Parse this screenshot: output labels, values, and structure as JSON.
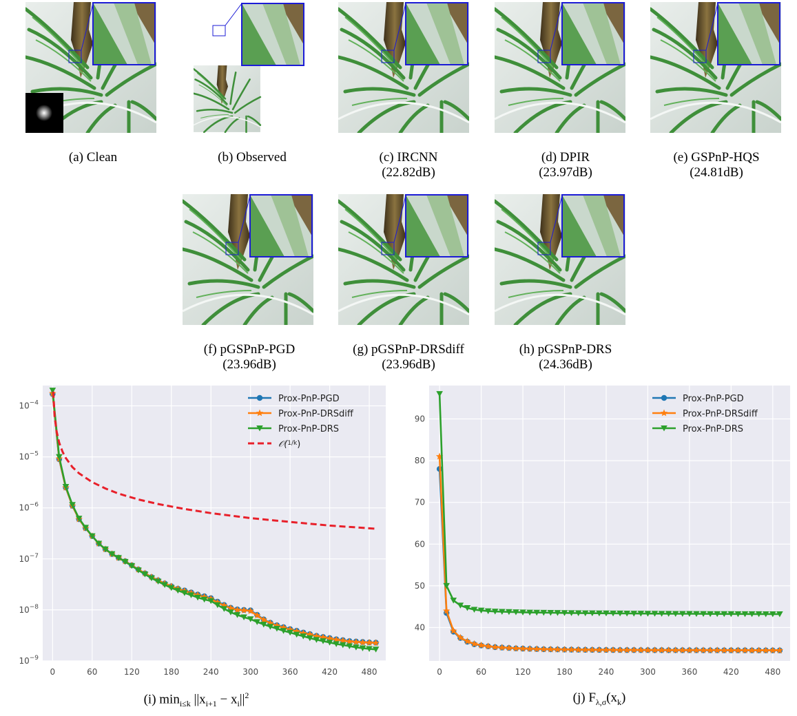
{
  "figure": {
    "panels": [
      {
        "id": "a",
        "label": "(a) Clean",
        "psnr": ""
      },
      {
        "id": "b",
        "label": "(b) Observed",
        "psnr": ""
      },
      {
        "id": "c",
        "label": "(c) IRCNN",
        "psnr": "(22.82dB)"
      },
      {
        "id": "d",
        "label": "(d) DPIR",
        "psnr": "(23.97dB)"
      },
      {
        "id": "e",
        "label": "(e) GSPnP-HQS",
        "psnr": "(24.81dB)"
      },
      {
        "id": "f",
        "label": "(f) pGSPnP-PGD",
        "psnr": "(23.96dB)"
      },
      {
        "id": "g",
        "label": "(g) pGSPnP-DRSdiff",
        "psnr": "(23.96dB)"
      },
      {
        "id": "h",
        "label": "(h) pGSPnP-DRS",
        "psnr": "(24.36dB)"
      }
    ],
    "colors": {
      "zoom_box": "#1b1bd6",
      "leaf": "#3f8f3a",
      "bg": "#dfe6e2",
      "stem": "#6b5a30"
    }
  },
  "chart_data": [
    {
      "type": "line",
      "caption": "(i) min",
      "caption_sub": "i≤k",
      "caption_rest": " ||x",
      "caption_sub2": "i+1",
      "caption_mid": " − x",
      "caption_sub3": "i",
      "caption_end": "||",
      "caption_sup": "2",
      "yscale": "log",
      "ylim": [
        1e-09,
        0.00025
      ],
      "xlim": [
        -15,
        505
      ],
      "xticks": [
        0,
        60,
        120,
        180,
        240,
        300,
        360,
        420,
        480
      ],
      "yticks": [
        {
          "v": 1e-09,
          "base": "10",
          "exp": "−9"
        },
        {
          "v": 1e-08,
          "base": "10",
          "exp": "−8"
        },
        {
          "v": 1e-07,
          "base": "10",
          "exp": "−7"
        },
        {
          "v": 1e-06,
          "base": "10",
          "exp": "−6"
        },
        {
          "v": 1e-05,
          "base": "10",
          "exp": "−5"
        },
        {
          "v": 0.0001,
          "base": "10",
          "exp": "−4"
        }
      ],
      "grid": true,
      "legend_position": "top-right",
      "series": [
        {
          "name": "Prox-PnP-PGD",
          "color": "#1f77b4",
          "marker": "circle",
          "x": [
            0,
            10,
            20,
            30,
            40,
            50,
            60,
            70,
            80,
            90,
            100,
            110,
            120,
            130,
            140,
            150,
            160,
            170,
            180,
            190,
            200,
            210,
            220,
            230,
            240,
            250,
            260,
            270,
            280,
            290,
            300,
            310,
            320,
            330,
            340,
            350,
            360,
            370,
            380,
            390,
            400,
            410,
            420,
            430,
            440,
            450,
            460,
            470,
            480,
            490
          ],
          "y": [
            0.00017,
            9e-06,
            2.5e-06,
            1.1e-06,
            6e-07,
            4e-07,
            2.8e-07,
            2e-07,
            1.55e-07,
            1.25e-07,
            1.05e-07,
            9e-08,
            7.5e-08,
            6.2e-08,
            5.2e-08,
            4.4e-08,
            3.8e-08,
            3.3e-08,
            2.9e-08,
            2.6e-08,
            2.4e-08,
            2.2e-08,
            2e-08,
            1.85e-08,
            1.7e-08,
            1.45e-08,
            1.25e-08,
            1.1e-08,
            1.02e-08,
            1e-08,
            9.8e-09,
            8e-09,
            6.5e-09,
            5.6e-09,
            5e-09,
            4.6e-09,
            4.2e-09,
            3.9e-09,
            3.6e-09,
            3.35e-09,
            3.1e-09,
            2.95e-09,
            2.8e-09,
            2.65e-09,
            2.55e-09,
            2.45e-09,
            2.4e-09,
            2.35e-09,
            2.3e-09,
            2.28e-09
          ]
        },
        {
          "name": "Prox-PnP-DRSdiff",
          "color": "#ff7f0e",
          "marker": "star",
          "x": [
            0,
            10,
            20,
            30,
            40,
            50,
            60,
            70,
            80,
            90,
            100,
            110,
            120,
            130,
            140,
            150,
            160,
            170,
            180,
            190,
            200,
            210,
            220,
            230,
            240,
            250,
            260,
            270,
            280,
            290,
            300,
            310,
            320,
            330,
            340,
            350,
            360,
            370,
            380,
            390,
            400,
            410,
            420,
            430,
            440,
            450,
            460,
            470,
            480,
            490
          ],
          "y": [
            0.000175,
            9.2e-06,
            2.5e-06,
            1.1e-06,
            6e-07,
            4e-07,
            2.8e-07,
            2e-07,
            1.55e-07,
            1.25e-07,
            1.05e-07,
            9e-08,
            7.5e-08,
            6.2e-08,
            5.2e-08,
            4.4e-08,
            3.8e-08,
            3.3e-08,
            2.9e-08,
            2.6e-08,
            2.35e-08,
            2.15e-08,
            1.95e-08,
            1.8e-08,
            1.65e-08,
            1.4e-08,
            1.22e-08,
            1.08e-08,
            1e-08,
            9.8e-09,
            9.5e-09,
            7.8e-09,
            6.4e-09,
            5.5e-09,
            4.9e-09,
            4.5e-09,
            4.1e-09,
            3.8e-09,
            3.5e-09,
            3.3e-09,
            3.05e-09,
            2.9e-09,
            2.75e-09,
            2.6e-09,
            2.5e-09,
            2.4e-09,
            2.35e-09,
            2.3e-09,
            2.28e-09,
            2.25e-09
          ]
        },
        {
          "name": "Prox-PnP-DRS",
          "color": "#2ca02c",
          "marker": "triangle-down",
          "x": [
            0,
            10,
            20,
            30,
            40,
            50,
            60,
            70,
            80,
            90,
            100,
            110,
            120,
            130,
            140,
            150,
            160,
            170,
            180,
            190,
            200,
            210,
            220,
            230,
            240,
            250,
            260,
            270,
            280,
            290,
            300,
            310,
            320,
            330,
            340,
            350,
            360,
            370,
            380,
            390,
            400,
            410,
            420,
            430,
            440,
            450,
            460,
            470,
            480,
            490
          ],
          "y": [
            0.0002,
            1e-05,
            2.6e-06,
            1.15e-06,
            6.2e-07,
            4.1e-07,
            2.8e-07,
            2e-07,
            1.55e-07,
            1.25e-07,
            1.05e-07,
            8.8e-08,
            7.3e-08,
            6e-08,
            5e-08,
            4.2e-08,
            3.6e-08,
            3.1e-08,
            2.7e-08,
            2.4e-08,
            2.15e-08,
            1.95e-08,
            1.75e-08,
            1.6e-08,
            1.5e-08,
            1.25e-08,
            1.05e-08,
            9e-09,
            8e-09,
            7.2e-09,
            6.6e-09,
            5.8e-09,
            5.2e-09,
            4.7e-09,
            4.3e-09,
            3.9e-09,
            3.6e-09,
            3.3e-09,
            3.05e-09,
            2.8e-09,
            2.6e-09,
            2.45e-09,
            2.3e-09,
            2.15e-09,
            2.05e-09,
            1.95e-09,
            1.85e-09,
            1.78e-09,
            1.72e-09,
            1.68e-09
          ]
        },
        {
          "name": "O(1/k)",
          "color": "#e8202a",
          "marker": "none",
          "dashed": true,
          "x": [
            1,
            3,
            6,
            10,
            15,
            20,
            30,
            40,
            60,
            80,
            100,
            130,
            160,
            200,
            240,
            300,
            360,
            420,
            490
          ],
          "y": [
            0.00019,
            6.4e-05,
            3.2e-05,
            1.9e-05,
            1.27e-05,
            9.5e-06,
            6.3e-06,
            4.75e-06,
            3.2e-06,
            2.4e-06,
            1.9e-06,
            1.46e-06,
            1.19e-06,
            9.5e-07,
            7.9e-07,
            6.3e-07,
            5.3e-07,
            4.5e-07,
            3.9e-07
          ]
        }
      ]
    },
    {
      "type": "line",
      "caption": "(j) F",
      "caption_sub": "λ,σ",
      "caption_rest": "(x",
      "caption_sub2": "k",
      "caption_end": ")",
      "yscale": "linear",
      "ylim": [
        32,
        98
      ],
      "xlim": [
        -15,
        505
      ],
      "xticks": [
        0,
        60,
        120,
        180,
        240,
        300,
        360,
        420,
        480
      ],
      "yticks": [
        40,
        50,
        60,
        70,
        80,
        90
      ],
      "grid": true,
      "legend_position": "top-right",
      "series": [
        {
          "name": "Prox-PnP-PGD",
          "color": "#1f77b4",
          "marker": "circle",
          "x": [
            0,
            10,
            20,
            30,
            40,
            50,
            60,
            70,
            80,
            90,
            100,
            110,
            120,
            130,
            140,
            150,
            160,
            170,
            180,
            190,
            200,
            210,
            220,
            230,
            240,
            250,
            260,
            270,
            280,
            290,
            300,
            310,
            320,
            330,
            340,
            350,
            360,
            370,
            380,
            390,
            400,
            410,
            420,
            430,
            440,
            450,
            460,
            470,
            480,
            490
          ],
          "y": [
            78,
            43.5,
            39,
            37.5,
            36.6,
            36.0,
            35.7,
            35.5,
            35.3,
            35.2,
            35.1,
            35.0,
            34.95,
            34.9,
            34.85,
            34.8,
            34.78,
            34.75,
            34.72,
            34.7,
            34.68,
            34.66,
            34.65,
            34.64,
            34.63,
            34.62,
            34.61,
            34.6,
            34.6,
            34.59,
            34.59,
            34.58,
            34.58,
            34.57,
            34.57,
            34.56,
            34.56,
            34.56,
            34.55,
            34.55,
            34.55,
            34.54,
            34.54,
            34.54,
            34.54,
            34.53,
            34.53,
            34.53,
            34.53,
            34.52
          ]
        },
        {
          "name": "Prox-PnP-DRSdiff",
          "color": "#ff7f0e",
          "marker": "star",
          "x": [
            0,
            10,
            20,
            30,
            40,
            50,
            60,
            70,
            80,
            90,
            100,
            110,
            120,
            130,
            140,
            150,
            160,
            170,
            180,
            190,
            200,
            210,
            220,
            230,
            240,
            250,
            260,
            270,
            280,
            290,
            300,
            310,
            320,
            330,
            340,
            350,
            360,
            370,
            380,
            390,
            400,
            410,
            420,
            430,
            440,
            450,
            460,
            470,
            480,
            490
          ],
          "y": [
            81,
            44,
            39.2,
            37.6,
            36.7,
            36.1,
            35.75,
            35.5,
            35.3,
            35.2,
            35.1,
            35.0,
            34.95,
            34.9,
            34.85,
            34.8,
            34.78,
            34.75,
            34.72,
            34.7,
            34.68,
            34.66,
            34.65,
            34.64,
            34.63,
            34.62,
            34.61,
            34.6,
            34.6,
            34.59,
            34.59,
            34.58,
            34.58,
            34.57,
            34.57,
            34.56,
            34.56,
            34.56,
            34.55,
            34.55,
            34.55,
            34.54,
            34.54,
            34.54,
            34.54,
            34.53,
            34.53,
            34.53,
            34.53,
            34.52
          ]
        },
        {
          "name": "Prox-PnP-DRS",
          "color": "#2ca02c",
          "marker": "triangle-down",
          "x": [
            0,
            10,
            20,
            30,
            40,
            50,
            60,
            70,
            80,
            90,
            100,
            110,
            120,
            130,
            140,
            150,
            160,
            170,
            180,
            190,
            200,
            210,
            220,
            230,
            240,
            250,
            260,
            270,
            280,
            290,
            300,
            310,
            320,
            330,
            340,
            350,
            360,
            370,
            380,
            390,
            400,
            410,
            420,
            430,
            440,
            450,
            460,
            470,
            480,
            490
          ],
          "y": [
            96,
            50,
            46.5,
            45.3,
            44.7,
            44.3,
            44.1,
            43.95,
            43.85,
            43.8,
            43.75,
            43.7,
            43.65,
            43.62,
            43.6,
            43.58,
            43.55,
            43.53,
            43.5,
            43.48,
            43.47,
            43.45,
            43.44,
            43.43,
            43.42,
            43.41,
            43.4,
            43.38,
            43.37,
            43.36,
            43.35,
            43.34,
            43.33,
            43.32,
            43.31,
            43.3,
            43.3,
            43.29,
            43.28,
            43.27,
            43.27,
            43.26,
            43.26,
            43.25,
            43.25,
            43.24,
            43.24,
            43.23,
            43.23,
            43.22
          ]
        }
      ]
    }
  ]
}
